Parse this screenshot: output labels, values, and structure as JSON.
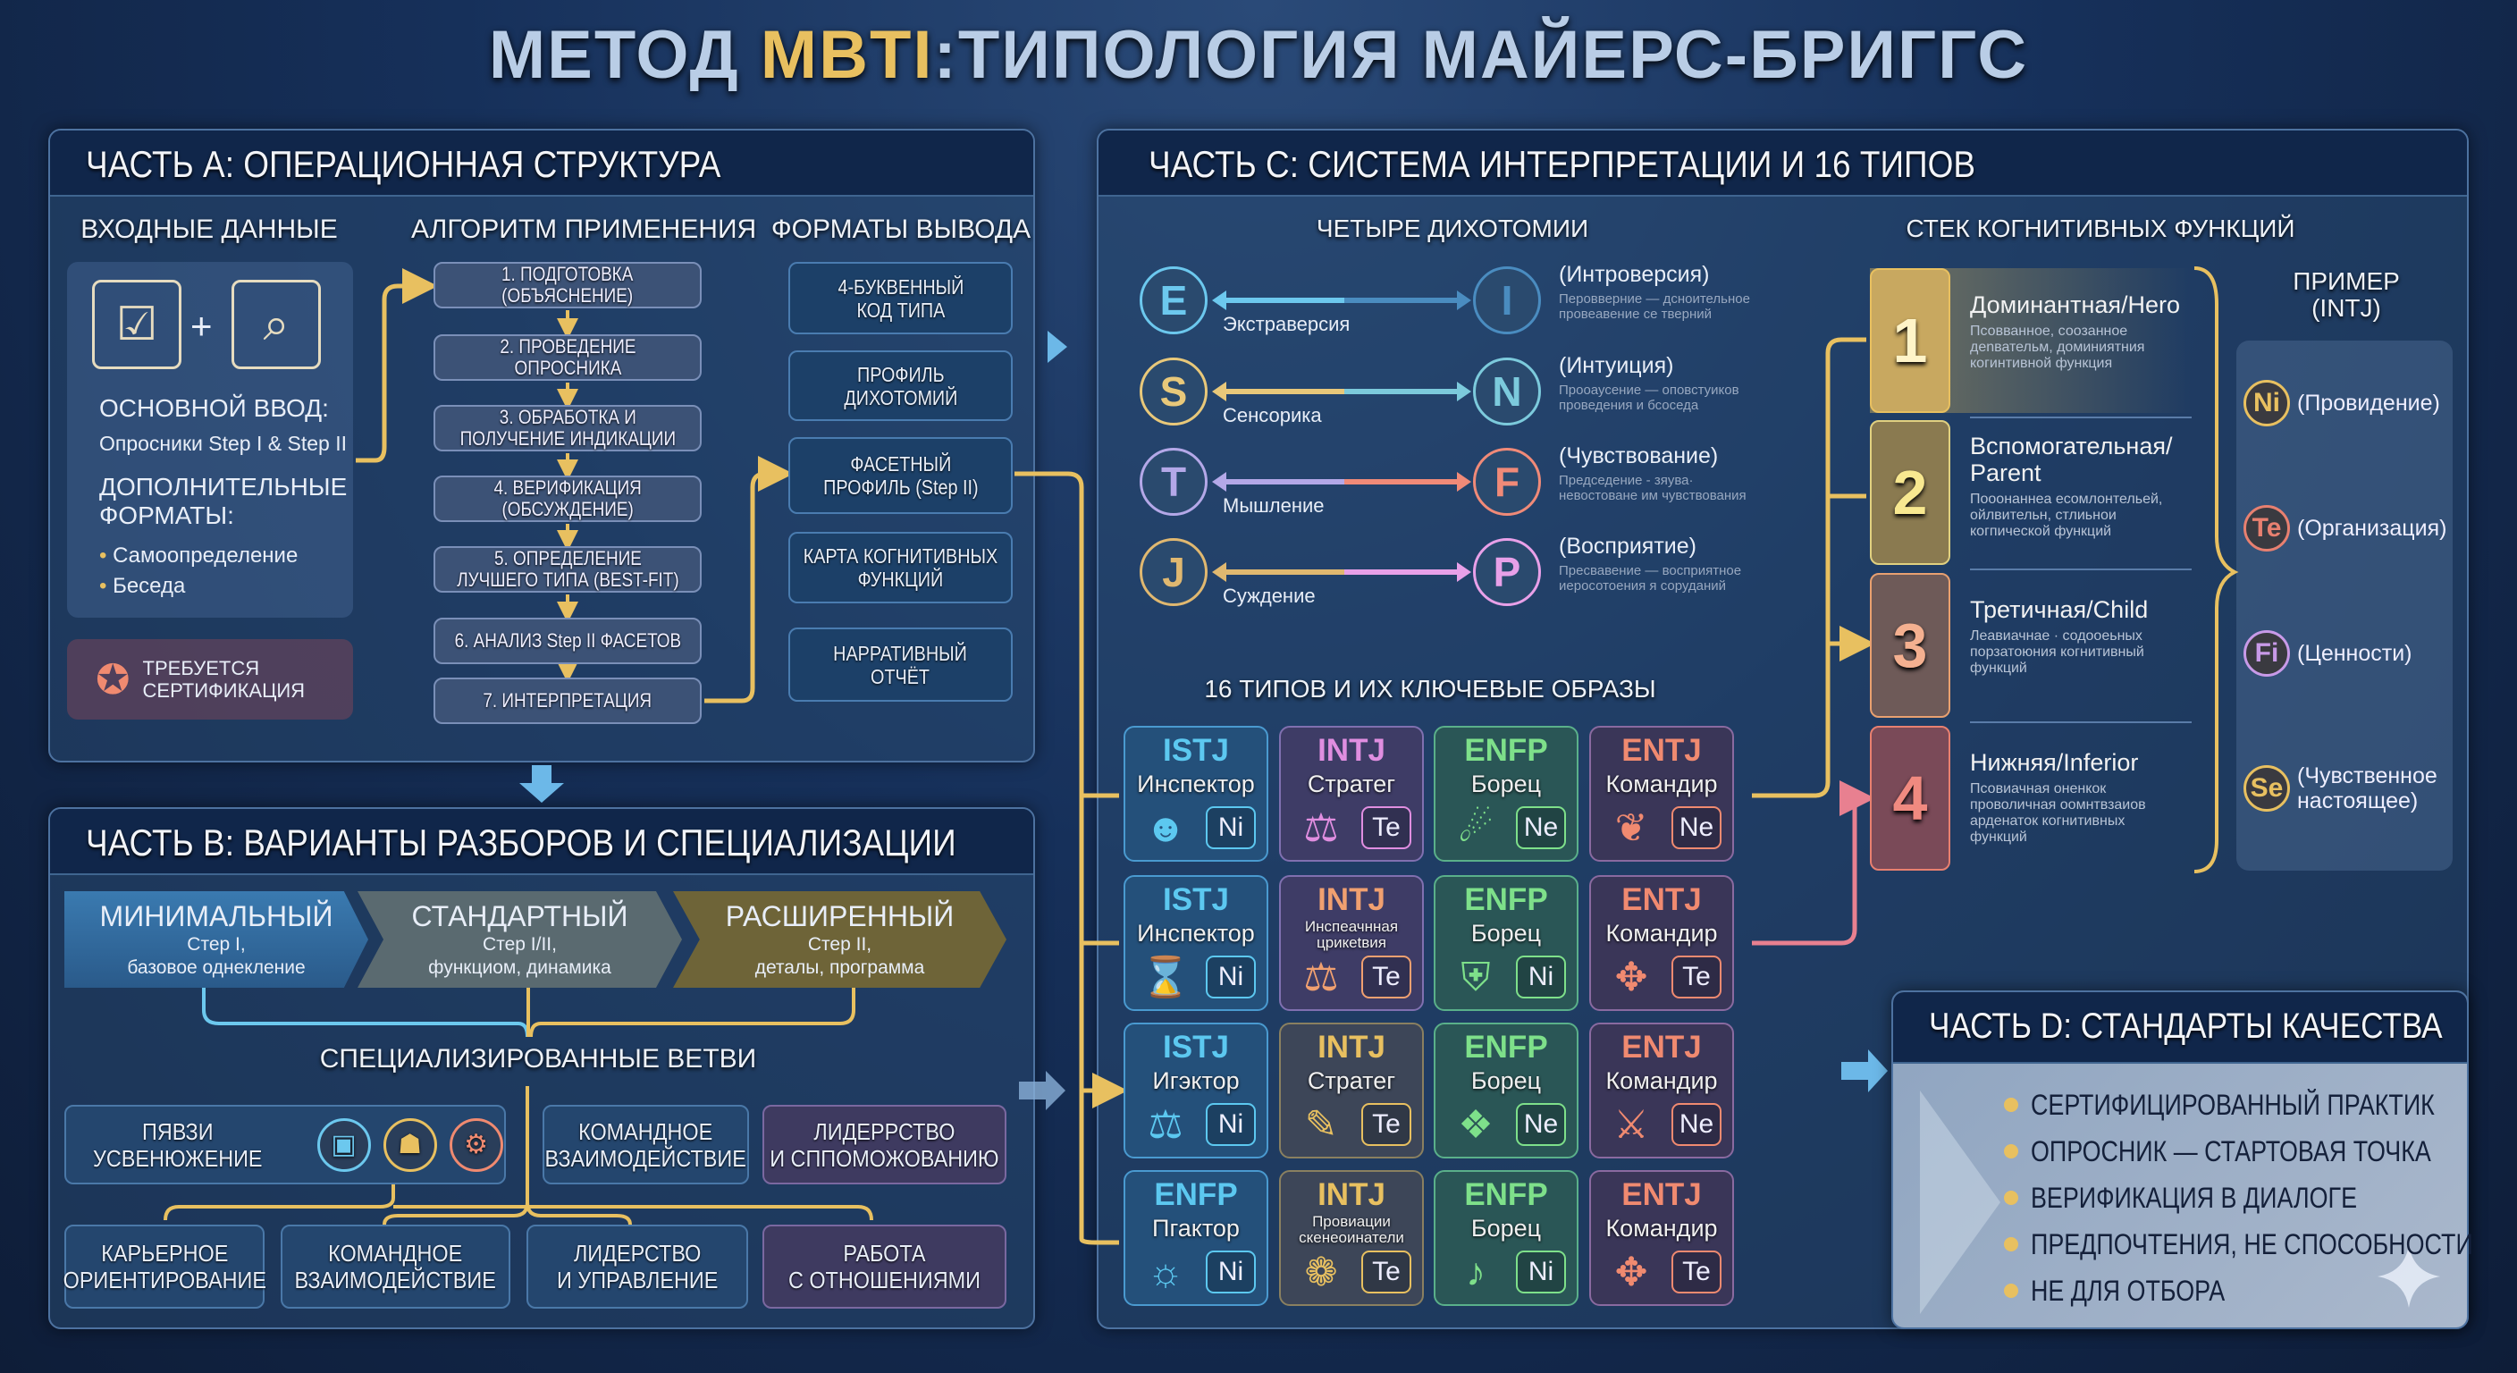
{
  "title": {
    "prefix": "МЕТОД ",
    "accent": "MBTI",
    "suffix": ":ТИПОЛОГИЯ МАЙЕРС-БРИГГС"
  },
  "colors": {
    "accent_gold": "#e8c060",
    "panel": "#284870",
    "header": "#10264a"
  },
  "part_a": {
    "title": "ЧАСТЬ А: ОПЕРАЦИОННАЯ СТРУКТУРА",
    "inputs": {
      "header": "ВХОДНЫЕ ДАННЫЕ",
      "icons": [
        "clipboard-checklist-icon",
        "document-search-icon"
      ],
      "plus": "+",
      "main_label": "ОСНОВНОЙ ВВОД:",
      "main_value": "Опросники Step I & Step II",
      "extra_label": "ДОПОЛНИТЕЛЬНЫЕ\nФОРМАТЫ:",
      "extra_items": [
        "Самоопределение",
        "Беседа"
      ],
      "certification": "ТРЕБУЕТСЯ\nСЕРТИФИКАЦИЯ"
    },
    "algorithm": {
      "header": "АЛГОРИТМ ПРИМЕНЕНИЯ",
      "steps": [
        "1. ПОДГОТОВКА\n(ОБЪЯСНЕНИЕ)",
        "2. ПРОВЕДЕНИЕ\nОПРОСНИКА",
        "3. ОБРАБОТКА И\nПОЛУЧЕНИЕ ИНДИКАЦИИ",
        "4. ВЕРИФИКАЦИЯ\n(ОБСУЖДЕНИЕ)",
        "5. ОПРЕДЕЛЕНИЕ\nЛУЧШЕГО ТИПА (BEST-FIT)",
        "6. АНАЛИЗ Step II ФАСЕТОВ",
        "7. ИНТЕРПРЕТАЦИЯ"
      ]
    },
    "outputs": {
      "header": "ФОРМАТЫ ВЫВОДА",
      "items": [
        "4-БУКВЕННЫЙ\nКОД ТИПА",
        "ПРОФИЛЬ\nДИХОТОМИЙ",
        "ФАСЕТНЫЙ\nПРОФИЛЬ (Step II)",
        "КАРТА КОГНИТИВНЫХ\nФУНКЦИЙ",
        "НАРРАТИВНЫЙ\nОТЧЁТ"
      ]
    }
  },
  "part_b": {
    "title": "ЧАСТЬ B: ВАРИАНТЫ РАЗБОРОВ И СПЕЦИАЛИЗАЦИИ",
    "levels": [
      {
        "name": "МИНИМАЛЬНЫЙ",
        "line1": "Стер I,",
        "line2": "базовое однекление"
      },
      {
        "name": "СТАНДАРТНЫЙ",
        "line1": "Стер I/II,",
        "line2": "функциом, динамика"
      },
      {
        "name": "РАСШИРЕННЫЙ",
        "line1": "Стер II,",
        "line2": "деталы, программа"
      }
    ],
    "branches_title": "СПЕЦИАЛИЗИРОВАННЫЕ ВЕТВИ",
    "row1": [
      "ПЯВЗИ\nУСВЕНЮЖЕНИЕ",
      "КОМАНДНОЕ\nВЗАИМОДЕЙСТВИЕ",
      "ЛИДЕРРСТВО\nИ СППОМОЖОВАНИЮ"
    ],
    "row1_icons": [
      "briefcase-icon",
      "group-icon",
      "person-gear-icon"
    ],
    "row2": [
      "КАРЬЕРНОЕ\nОРИЕНТИРОВАНИЕ",
      "КОМАНДНОЕ\nВЗАИМОДЕЙСТВИЕ",
      "ЛИДЕРСТВО\nИ УПРАВЛЕНИЕ",
      "РАБОТА\nС ОТНОШЕНИЯМИ"
    ]
  },
  "part_c": {
    "title": "ЧАСТЬ C: СИСТЕМА ИНТЕРПРЕТАЦИИ И 16 ТИПОВ",
    "dichotomies": {
      "header": "ЧЕТЫРЕ ДИХОТОМИИ",
      "pairs": [
        {
          "left": "E",
          "left_label": "Экстраверсия",
          "right": "I",
          "right_label": "(Интроверсия)",
          "right_desc": "Перовверние — дсноительное\nпровеавение се тверний",
          "lc": "#6cc8ee",
          "rc": "#4a8cc0"
        },
        {
          "left": "S",
          "left_label": "Сенсорика",
          "right": "N",
          "right_label": "(Интуиция)",
          "right_desc": "Прооаусение — оповстуиков\nпроведения и бсоседа",
          "lc": "#e8c87a",
          "rc": "#7ccadc"
        },
        {
          "left": "T",
          "left_label": "Мышление",
          "right": "F",
          "right_label": "(Чувствование)",
          "right_desc": "Председение - зяува·\nневостоване им чувствования",
          "lc": "#b4a8e8",
          "rc": "#f08a78"
        },
        {
          "left": "J",
          "left_label": "Суждение",
          "right": "P",
          "right_label": "(Восприятие)",
          "right_desc": "Пресвавение — восприятное\nиеросотоения я соруданий",
          "lc": "#e0b870",
          "rc": "#e8a0e8"
        }
      ]
    },
    "types": {
      "header": "16 ТИПОВ И ИХ КЛЮЧЕВЫЕ ОБРАЗЫ",
      "cells": [
        {
          "code": "ISTJ",
          "name": "Инспектор",
          "fn": "Ni",
          "icon": "inspector-person-icon",
          "color": "#5cc8f0"
        },
        {
          "code": "INTJ",
          "name": "Стратег",
          "fn": "Te",
          "icon": "scales-icon",
          "color": "#e08ee0"
        },
        {
          "code": "ENFP",
          "name": "Борец",
          "fn": "Ne",
          "icon": "runner-icon",
          "color": "#7ee08a"
        },
        {
          "code": "ENTJ",
          "name": "Командир",
          "fn": "Ne",
          "icon": "eagle-icon",
          "color": "#f08a70"
        },
        {
          "code": "ISTJ",
          "name": "Инспектор",
          "fn": "Ni",
          "icon": "hourglass-icon",
          "color": "#5cc8f0"
        },
        {
          "code": "INTJ",
          "name": "Инспеачнная\nцрикetвия",
          "fn": "Te",
          "icon": "scales-icon",
          "color": "#f0a070"
        },
        {
          "code": "ENFP",
          "name": "Борец",
          "fn": "Ni",
          "icon": "shield-icon",
          "color": "#7ee08a"
        },
        {
          "code": "ENTJ",
          "name": "Командир",
          "fn": "Te",
          "icon": "move-arrows-icon",
          "color": "#f08a70"
        },
        {
          "code": "ISTJ",
          "name": "Игэктор",
          "fn": "Ni",
          "icon": "scales-icon",
          "color": "#5cc8f0"
        },
        {
          "code": "INTJ",
          "name": "Стратег",
          "fn": "Te",
          "icon": "pen-document-icon",
          "color": "#e8c060"
        },
        {
          "code": "ENFP",
          "name": "Борец",
          "fn": "Ne",
          "icon": "puzzle-icon",
          "color": "#7ee08a"
        },
        {
          "code": "ENTJ",
          "name": "Командир",
          "fn": "Ne",
          "icon": "crossed-swords-icon",
          "color": "#f08a70"
        },
        {
          "code": "ENFP",
          "name": "Пгактор",
          "fn": "Ni",
          "icon": "lightbulb-icon",
          "color": "#5cc8f0"
        },
        {
          "code": "INTJ",
          "name": "Провиации\nскенеоинатели",
          "fn": "Te",
          "icon": "brain-icon",
          "color": "#e8c060"
        },
        {
          "code": "ENFP",
          "name": "Борец",
          "fn": "Ni",
          "icon": "dancer-icon",
          "color": "#7ee08a"
        },
        {
          "code": "ENTJ",
          "name": "Командир",
          "fn": "Te",
          "icon": "move-arrows-icon",
          "color": "#f08a70"
        }
      ]
    },
    "stack": {
      "header": "СТЕК КОГНИТИВНЫХ ФУНКЦИЙ",
      "items": [
        {
          "num": "1",
          "title": "Доминантная/Hero",
          "desc": "Псовванное, соозанное деnвательм, доминиятния когинтивной функция",
          "color": "#e8c060"
        },
        {
          "num": "2",
          "title": "Вспомогательная/\nParent",
          "desc": "Пооонаннеа ecомлонтельей, ойлвительн, стлиьнои когпической функций",
          "color": "#e0d080"
        },
        {
          "num": "3",
          "title": "Третичная/Child",
          "desc": "Леавиачнае · содооеьных порзатоюния когнитивный функций",
          "color": "#e8a070"
        },
        {
          "num": "4",
          "title": "Нижняя/Inferior",
          "desc": "Псовиачная оненкок проволичная оомнтвзаиов арденаток когнитивных функций",
          "color": "#e88070"
        }
      ]
    },
    "example": {
      "header": "ПРИМЕР\n(INTJ)",
      "items": [
        {
          "fn": "Ni",
          "label": "(Провидение)",
          "color": "#e8c060"
        },
        {
          "fn": "Te",
          "label": "(Организация)",
          "color": "#e88070"
        },
        {
          "fn": "Fi",
          "label": "(Ценности)",
          "color": "#c89ae8"
        },
        {
          "fn": "Se",
          "label": "(Чувственное\nнастоящее)",
          "color": "#e8c060"
        }
      ]
    }
  },
  "part_d": {
    "title": "ЧАСТЬ D: СТАНДАРТЫ КАЧЕСТВА",
    "items": [
      "СЕРТИФИЦИРОВАННЫЙ ПРАКТИК",
      "ОПРОСНИК — СТАРТОВАЯ ТОЧКА",
      "ВЕРИФИКАЦИЯ В ДИАЛОГЕ",
      "ПРЕДПОЧТЕНИЯ, НЕ СПОСОБНОСТИ",
      "НЕ ДЛЯ ОТБОРА"
    ]
  }
}
